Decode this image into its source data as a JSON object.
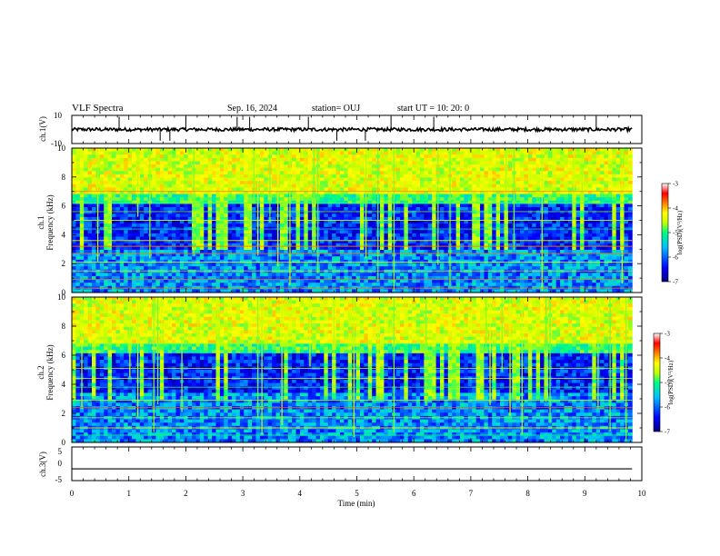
{
  "header": {
    "title": "VLF Spectra",
    "date": "Sep. 16, 2024",
    "station": "station= OUJ",
    "start": "start  UT  =   10: 20: 0"
  },
  "chart_data": [
    {
      "type": "line",
      "panel": "ch1-waveform",
      "ylabel": "ch.1(V)",
      "ylim": [
        -10,
        10
      ],
      "yticks": [
        "10",
        "-10"
      ],
      "series_level": 0,
      "spikes_min": [
        0.83,
        1.55,
        1.72,
        2.0,
        2.9,
        3.12,
        4.15,
        4.65,
        5.15,
        5.6,
        6.35,
        9.2
      ],
      "xlim": [
        0,
        10
      ]
    },
    {
      "type": "heatmap",
      "panel": "ch1-spectrogram",
      "ylabel": "ch.1\nFrequency (kHz)",
      "ylabel_line1": "ch.1",
      "ylabel_line2": "Frequency (kHz)",
      "ylim": [
        0,
        10
      ],
      "yticks": [
        "0",
        "2",
        "4",
        "6",
        "8",
        "10"
      ],
      "xlim": [
        0,
        10
      ],
      "data_end_min": 9.83,
      "colorbar": {
        "label": "log(PSD)(V²/Hz)",
        "range": [
          -7,
          -3
        ],
        "ticks": [
          "-3",
          "-4",
          "-5",
          "-6",
          "-7"
        ]
      },
      "tonal_lines_khz": [
        0.3,
        0.9,
        1.5,
        2.1,
        2.7,
        3.2,
        3.6,
        4.4,
        5.0,
        5.6,
        6.2,
        7.0
      ]
    },
    {
      "type": "heatmap",
      "panel": "ch2-spectrogram",
      "ylabel_line1": "ch.2",
      "ylabel_line2": "Frequency (kHz)",
      "ylim": [
        0,
        10
      ],
      "yticks": [
        "0",
        "2",
        "4",
        "6",
        "8",
        "10"
      ],
      "xlim": [
        0,
        10
      ],
      "data_end_min": 9.83,
      "colorbar": {
        "label": "log(PSD)(V²/Hz)",
        "range": [
          -7,
          -3
        ],
        "ticks": [
          "-3",
          "-4",
          "-5",
          "-6",
          "-7"
        ]
      },
      "tonal_lines_khz": [
        0.5,
        1.0,
        1.7,
        2.4,
        2.9,
        3.8,
        4.4,
        5.1,
        6.8
      ]
    },
    {
      "type": "line",
      "panel": "ch3-waveform",
      "ylabel": "ch.3(V)",
      "ylim": [
        -5,
        5
      ],
      "yticks": [
        "5",
        "0",
        "-5"
      ],
      "series_level": -1.5,
      "xlim": [
        0,
        10
      ],
      "xlabel": "Time (min)",
      "xticks": [
        "0",
        "1",
        "2",
        "3",
        "4",
        "5",
        "6",
        "7",
        "8",
        "9",
        "10"
      ]
    }
  ],
  "colors": {
    "axis": "#000000",
    "colormap": [
      "#00007f",
      "#0000ff",
      "#00bfff",
      "#00ff80",
      "#c0ff00",
      "#ffff00",
      "#ff7f00",
      "#ff0000",
      "#ffffff"
    ]
  }
}
